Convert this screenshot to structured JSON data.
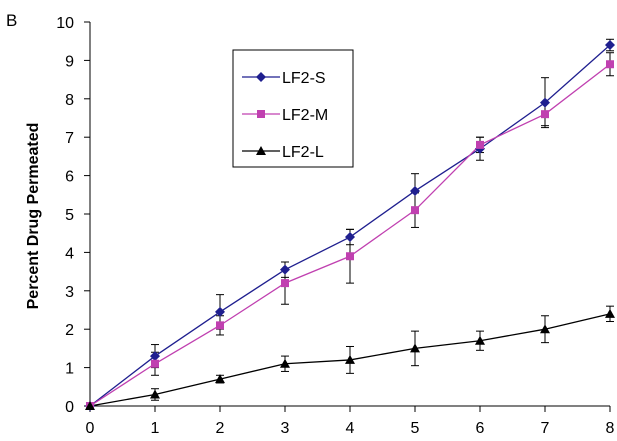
{
  "chart_data": {
    "type": "line",
    "panel_label": "B",
    "title": "",
    "xlabel": "",
    "ylabel": "Percent Drug Permeated",
    "x": [
      0,
      1,
      2,
      3,
      4,
      5,
      6,
      7,
      8
    ],
    "xlim": [
      0,
      8
    ],
    "ylim": [
      0,
      10
    ],
    "x_ticks": [
      "0",
      "1",
      "2",
      "3",
      "4",
      "5",
      "6",
      "7",
      "8"
    ],
    "y_ticks": [
      "0",
      "1",
      "2",
      "3",
      "4",
      "5",
      "6",
      "7",
      "8",
      "9",
      "10"
    ],
    "grid": false,
    "legend_position": "top-left",
    "series": [
      {
        "name": "LF2-S",
        "color": "#1f1f8f",
        "marker": "diamond",
        "values": [
          0,
          1.3,
          2.45,
          3.55,
          4.4,
          5.6,
          6.7,
          7.9,
          9.4
        ],
        "errors": [
          0,
          0.3,
          0.45,
          0.2,
          0.2,
          0.45,
          0.3,
          0.65,
          0.15
        ]
      },
      {
        "name": "LF2-M",
        "color": "#c040b0",
        "marker": "square",
        "values": [
          0,
          1.1,
          2.1,
          3.2,
          3.9,
          5.1,
          6.8,
          7.6,
          8.9
        ],
        "errors": [
          0,
          0.3,
          0.25,
          0.55,
          0.7,
          0.45,
          0.2,
          0.3,
          0.3
        ]
      },
      {
        "name": "LF2-L",
        "color": "#000000",
        "marker": "triangle",
        "values": [
          0,
          0.3,
          0.7,
          1.1,
          1.2,
          1.5,
          1.7,
          2.0,
          2.4
        ],
        "errors": [
          0,
          0.15,
          0.1,
          0.2,
          0.35,
          0.45,
          0.25,
          0.35,
          0.2
        ]
      }
    ]
  }
}
